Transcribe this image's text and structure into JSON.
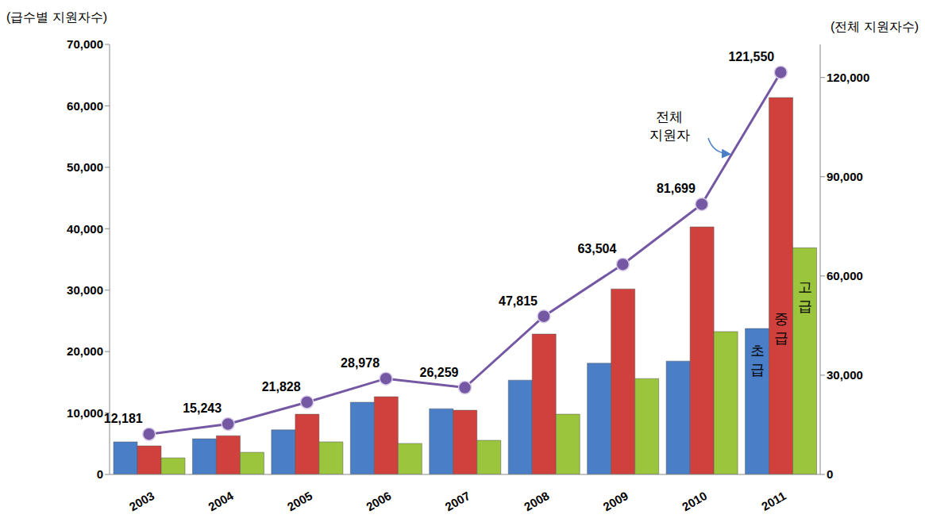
{
  "chart_data": {
    "type": "bar",
    "categories": [
      "2003",
      "2004",
      "2005",
      "2006",
      "2007",
      "2008",
      "2009",
      "2010",
      "2011"
    ],
    "y_label": "(급수별 지원자수)",
    "y2_label": "(전체 지원자수)",
    "ylim": [
      0,
      70000
    ],
    "yticks": [
      0,
      {
        "value": 10000,
        "label": "10,000"
      },
      {
        "value": 20000,
        "label": "20,000"
      },
      {
        "value": 30000,
        "label": "30,000"
      },
      {
        "value": 40000,
        "label": "40,000"
      },
      {
        "value": 50000,
        "label": "50,000"
      },
      {
        "value": 60000,
        "label": "60,000"
      },
      {
        "value": 70000,
        "label": "70,000"
      }
    ],
    "y2lim": [
      0,
      130000
    ],
    "y2ticks": [
      0,
      {
        "value": 30000,
        "label": "30,000"
      },
      {
        "value": 60000,
        "label": "60,000"
      },
      {
        "value": 90000,
        "label": "90,000"
      },
      {
        "value": 120000,
        "label": "120,000"
      }
    ],
    "grid": false,
    "series": [
      {
        "name": "초급",
        "type": "bar",
        "color": "#4a7fc8",
        "values": [
          5300,
          5800,
          7250,
          11750,
          10700,
          15350,
          18100,
          18450,
          23750
        ]
      },
      {
        "name": "중급",
        "type": "bar",
        "color": "#d0413d",
        "values": [
          4650,
          6300,
          9800,
          12650,
          10450,
          22850,
          30200,
          40300,
          61350
        ]
      },
      {
        "name": "고급",
        "type": "bar",
        "color": "#9bc53d",
        "values": [
          2700,
          3600,
          5300,
          5050,
          5550,
          9800,
          15600,
          23250,
          36900
        ]
      },
      {
        "name": "전체 지원자",
        "type": "line",
        "axis": "y2",
        "color": "#7558a3",
        "marker": "circle",
        "data_labels": true,
        "values": [
          12181,
          15243,
          21828,
          28978,
          26259,
          47815,
          63504,
          81699,
          121550
        ],
        "value_labels": [
          "12,181",
          "15,243",
          "21,828",
          "28,978",
          "26,259",
          "47,815",
          "63,504",
          "81,699",
          "121,550"
        ]
      }
    ]
  }
}
